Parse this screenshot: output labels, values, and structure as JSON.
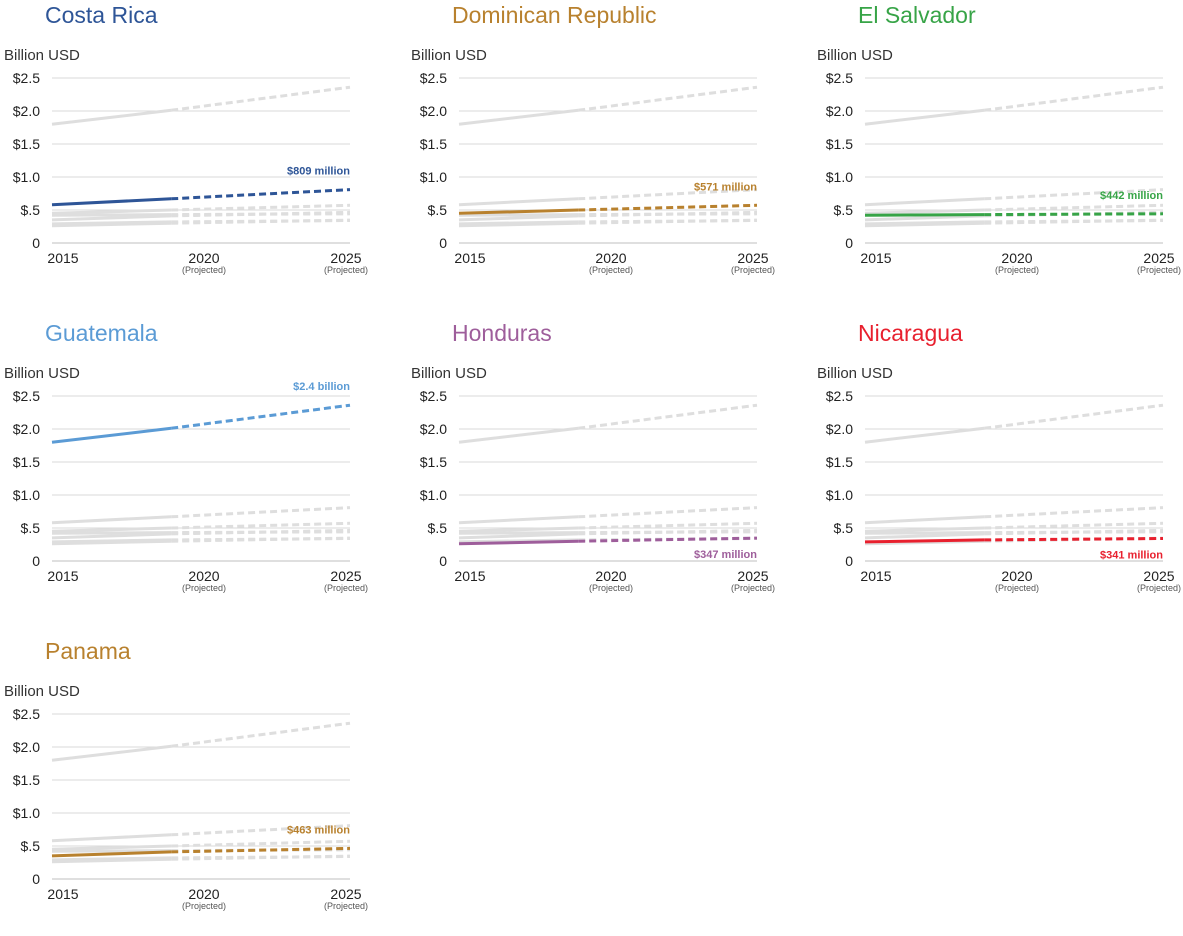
{
  "chart_data": [
    {
      "type": "line",
      "title": "Costa Rica",
      "color": "#2E5597",
      "ylabel": "Billion USD",
      "x_ticks": [
        "2015",
        "2020",
        "2025"
      ],
      "x_subticks": [
        "",
        "(Projected)",
        "(Projected)"
      ],
      "y_ticks": [
        "0",
        "$.5",
        "$1.0",
        "$1.5",
        "$2.0",
        "$2.5"
      ],
      "ylim": [
        0,
        2.5
      ],
      "series": [
        {
          "x": [
            2015,
            2019,
            2025
          ],
          "values": [
            0.58,
            0.67,
            0.809
          ],
          "projected_from": 2019
        }
      ],
      "annotation": "$809 million",
      "annotation_pos": "above"
    },
    {
      "type": "line",
      "title": "Dominican Republic",
      "color": "#B8812E",
      "ylabel": "Billion USD",
      "x_ticks": [
        "2015",
        "2020",
        "2025"
      ],
      "x_subticks": [
        "",
        "(Projected)",
        "(Projected)"
      ],
      "y_ticks": [
        "0",
        "$.5",
        "$1.0",
        "$1.5",
        "$2.0",
        "$2.5"
      ],
      "ylim": [
        0,
        2.5
      ],
      "series": [
        {
          "x": [
            2015,
            2019,
            2025
          ],
          "values": [
            0.45,
            0.5,
            0.571
          ],
          "projected_from": 2019
        }
      ],
      "annotation": "$571 million",
      "annotation_pos": "above"
    },
    {
      "type": "line",
      "title": "El Salvador",
      "color": "#37A447",
      "ylabel": "Billion USD",
      "x_ticks": [
        "2015",
        "2020",
        "2025"
      ],
      "x_subticks": [
        "",
        "(Projected)",
        "(Projected)"
      ],
      "y_ticks": [
        "0",
        "$.5",
        "$1.0",
        "$1.5",
        "$2.0",
        "$2.5"
      ],
      "ylim": [
        0,
        2.5
      ],
      "series": [
        {
          "x": [
            2015,
            2019,
            2025
          ],
          "values": [
            0.42,
            0.43,
            0.442
          ],
          "projected_from": 2019
        }
      ],
      "annotation": "$442 million",
      "annotation_pos": "above"
    },
    {
      "type": "line",
      "title": "Guatemala",
      "color": "#5B9BD5",
      "ylabel": "Billion USD",
      "x_ticks": [
        "2015",
        "2020",
        "2025"
      ],
      "x_subticks": [
        "",
        "(Projected)",
        "(Projected)"
      ],
      "y_ticks": [
        "0",
        "$.5",
        "$1.0",
        "$1.5",
        "$2.0",
        "$2.5"
      ],
      "ylim": [
        0,
        2.5
      ],
      "series": [
        {
          "x": [
            2015,
            2019,
            2025
          ],
          "values": [
            1.8,
            2.01,
            2.36
          ],
          "projected_from": 2019
        }
      ],
      "annotation": "$2.4 billion",
      "annotation_pos": "above"
    },
    {
      "type": "line",
      "title": "Honduras",
      "color": "#9E5E9B",
      "ylabel": "Billion USD",
      "x_ticks": [
        "2015",
        "2020",
        "2025"
      ],
      "x_subticks": [
        "",
        "(Projected)",
        "(Projected)"
      ],
      "y_ticks": [
        "0",
        "$.5",
        "$1.0",
        "$1.5",
        "$2.0",
        "$2.5"
      ],
      "ylim": [
        0,
        2.5
      ],
      "series": [
        {
          "x": [
            2015,
            2019,
            2025
          ],
          "values": [
            0.26,
            0.3,
            0.347
          ],
          "projected_from": 2019
        }
      ],
      "annotation": "$347 million",
      "annotation_pos": "below"
    },
    {
      "type": "line",
      "title": "Nicaragua",
      "color": "#E8202E",
      "ylabel": "Billion USD",
      "x_ticks": [
        "2015",
        "2020",
        "2025"
      ],
      "x_subticks": [
        "",
        "(Projected)",
        "(Projected)"
      ],
      "y_ticks": [
        "0",
        "$.5",
        "$1.0",
        "$1.5",
        "$2.0",
        "$2.5"
      ],
      "ylim": [
        0,
        2.5
      ],
      "series": [
        {
          "x": [
            2015,
            2019,
            2025
          ],
          "values": [
            0.29,
            0.32,
            0.341
          ],
          "projected_from": 2019
        }
      ],
      "annotation": "$341 million",
      "annotation_pos": "below"
    },
    {
      "type": "line",
      "title": "Panama",
      "color": "#B8812E",
      "ylabel": "Billion USD",
      "x_ticks": [
        "2015",
        "2020",
        "2025"
      ],
      "x_subticks": [
        "",
        "(Projected)",
        "(Projected)"
      ],
      "y_ticks": [
        "0",
        "$.5",
        "$1.0",
        "$1.5",
        "$2.0",
        "$2.5"
      ],
      "ylim": [
        0,
        2.5
      ],
      "series": [
        {
          "x": [
            2015,
            2019,
            2025
          ],
          "values": [
            0.35,
            0.41,
            0.463
          ],
          "projected_from": 2019
        }
      ],
      "annotation": "$463 million",
      "annotation_pos": "above"
    }
  ],
  "colors": {
    "background_series": "#DEDEDE",
    "gridline": "#D9D9D9",
    "axis": "#BFBFBF"
  }
}
